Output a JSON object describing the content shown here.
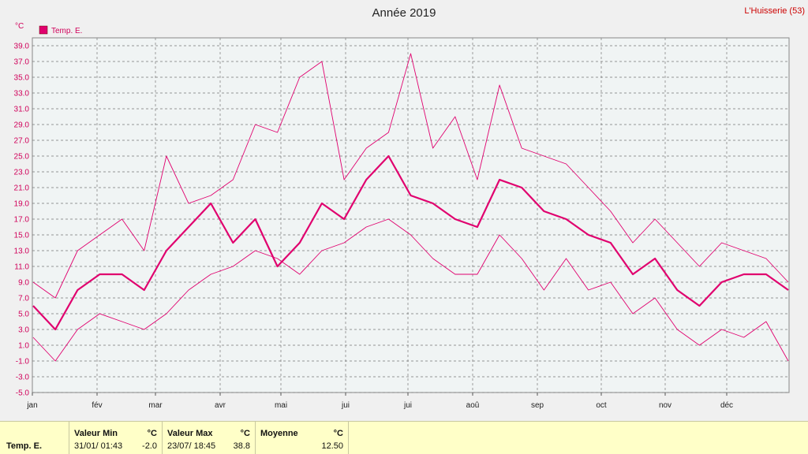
{
  "header": {
    "title": "Année 2019",
    "station": "L'Huisserie (53)"
  },
  "chart_data": {
    "type": "line",
    "title": "Année 2019",
    "ylabel": "°C",
    "ylim": [
      -5,
      40
    ],
    "yticks": [
      "39.0",
      "37.0",
      "35.0",
      "33.0",
      "31.0",
      "29.0",
      "27.0",
      "25.0",
      "23.0",
      "21.0",
      "19.0",
      "17.0",
      "15.0",
      "13.0",
      "11.0",
      "9.0",
      "7.0",
      "5.0",
      "3.0",
      "1.0",
      "-1.0",
      "-3.0",
      "-5.0"
    ],
    "months": [
      "jan",
      "fév",
      "mar",
      "avr",
      "mai",
      "jui",
      "jui",
      "aoû",
      "sep",
      "oct",
      "nov",
      "déc"
    ],
    "grid": true,
    "legend": "top-left",
    "series": [
      {
        "name": "Temp. E.",
        "color": "#e0006e",
        "avg": [
          6,
          3,
          8,
          10,
          10,
          8,
          13,
          16,
          19,
          14,
          17,
          11,
          14,
          19,
          17,
          22,
          25,
          20,
          19,
          17,
          16,
          22,
          21,
          18,
          17,
          15,
          14,
          10,
          12,
          8,
          6,
          9,
          10,
          10,
          8
        ],
        "max": [
          9,
          7,
          13,
          15,
          17,
          13,
          25,
          19,
          20,
          22,
          29,
          28,
          35,
          37,
          22,
          26,
          28,
          38,
          26,
          30,
          22,
          34,
          26,
          25,
          24,
          21,
          18,
          14,
          17,
          14,
          11,
          14,
          13,
          12,
          9
        ],
        "min": [
          2,
          -1,
          3,
          5,
          4,
          3,
          5,
          8,
          10,
          11,
          13,
          12,
          10,
          13,
          14,
          16,
          17,
          15,
          12,
          10,
          10,
          15,
          12,
          8,
          12,
          8,
          9,
          5,
          7,
          3,
          1,
          3,
          2,
          4,
          -1
        ]
      }
    ]
  },
  "stats": {
    "series_label": "Temp. E.",
    "min": {
      "label": "Valeur Min",
      "unit": "°C",
      "date": "31/01/ 01:43",
      "value": "-2.0"
    },
    "max": {
      "label": "Valeur Max",
      "unit": "°C",
      "date": "23/07/ 18:45",
      "value": "38.8"
    },
    "mean": {
      "label": "Moyenne",
      "unit": "°C",
      "value": "12.50"
    }
  }
}
